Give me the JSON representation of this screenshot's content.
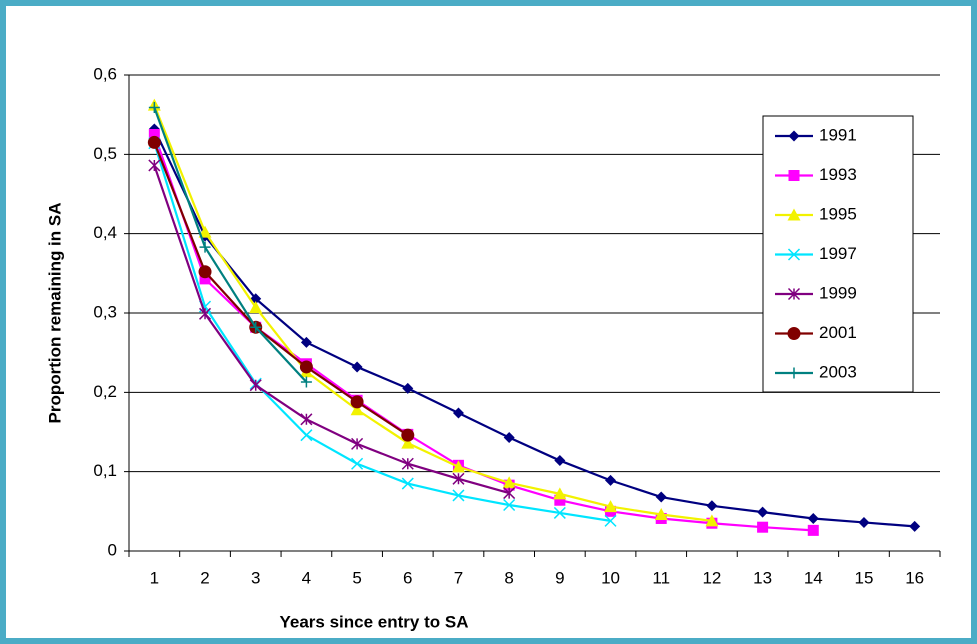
{
  "chart_data": {
    "type": "line",
    "x_label": "Years since entry to SA",
    "y_label": "Proportion remaining in SA",
    "categories": [
      1,
      2,
      3,
      4,
      5,
      6,
      7,
      8,
      9,
      10,
      11,
      12,
      13,
      14,
      15,
      16
    ],
    "series": [
      {
        "name": "1991",
        "color": "#000080",
        "marker": "diamond",
        "values": [
          0.532,
          0.397,
          0.318,
          0.263,
          0.232,
          0.205,
          0.174,
          0.143,
          0.114,
          0.089,
          0.068,
          0.057,
          0.049,
          0.041,
          0.036,
          0.031
        ]
      },
      {
        "name": "1993",
        "color": "#ff00ff",
        "marker": "square",
        "values": [
          0.525,
          0.343,
          0.282,
          0.236,
          0.19,
          0.147,
          0.108,
          0.083,
          0.064,
          0.05,
          0.041,
          0.035,
          0.03,
          0.026,
          null,
          null
        ]
      },
      {
        "name": "1995",
        "color": "#f2f200",
        "marker": "triangle",
        "values": [
          0.562,
          0.402,
          0.307,
          0.226,
          0.178,
          0.136,
          0.106,
          0.086,
          0.072,
          0.056,
          0.046,
          0.038,
          null,
          null,
          null,
          null
        ]
      },
      {
        "name": "1997",
        "color": "#00e5ff",
        "marker": "x",
        "values": [
          0.514,
          0.308,
          0.211,
          0.146,
          0.11,
          0.085,
          0.07,
          0.058,
          0.048,
          0.038,
          null,
          null,
          null,
          null,
          null,
          null
        ]
      },
      {
        "name": "1999",
        "color": "#800080",
        "marker": "star",
        "values": [
          0.486,
          0.299,
          0.209,
          0.166,
          0.135,
          0.11,
          0.091,
          0.073,
          null,
          null,
          null,
          null,
          null,
          null,
          null,
          null
        ]
      },
      {
        "name": "2001",
        "color": "#800000",
        "marker": "circle",
        "values": [
          0.515,
          0.352,
          0.282,
          0.232,
          0.188,
          0.146,
          null,
          null,
          null,
          null,
          null,
          null,
          null,
          null,
          null,
          null
        ]
      },
      {
        "name": "2003",
        "color": "#008080",
        "marker": "plus",
        "values": [
          0.559,
          0.383,
          0.282,
          0.213,
          null,
          null,
          null,
          null,
          null,
          null,
          null,
          null,
          null,
          null,
          null,
          null
        ]
      }
    ],
    "ylim": [
      0,
      0.6
    ],
    "yticks": [
      0,
      {
        "value": 0.1,
        "label": "0,1"
      },
      {
        "value": 0.2,
        "label": "0,2"
      },
      {
        "value": 0.3,
        "label": "0,3"
      },
      {
        "value": 0.4,
        "label": "0,4"
      },
      {
        "value": 0.5,
        "label": "0,5"
      },
      {
        "value": 0.6,
        "label": "0,6"
      }
    ],
    "grid": true,
    "legend": "right"
  }
}
